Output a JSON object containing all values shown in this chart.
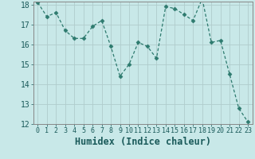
{
  "x": [
    0,
    1,
    2,
    3,
    4,
    5,
    6,
    7,
    8,
    9,
    10,
    11,
    12,
    13,
    14,
    15,
    16,
    17,
    18,
    19,
    20,
    21,
    22,
    23
  ],
  "y": [
    18.1,
    17.4,
    17.6,
    16.7,
    16.3,
    16.3,
    16.9,
    17.2,
    15.9,
    14.4,
    15.0,
    16.1,
    15.9,
    15.3,
    17.9,
    17.8,
    17.5,
    17.2,
    18.3,
    16.1,
    16.2,
    14.5,
    12.8,
    12.1
  ],
  "line_color": "#2d7a6e",
  "marker": "D",
  "marker_size": 2.5,
  "bg_color": "#c8e8e8",
  "grid_color_major": "#b0cccc",
  "grid_color_minor": "#d4e8e8",
  "xlabel": "Humidex (Indice chaleur)",
  "ylim": [
    12,
    18
  ],
  "xlim": [
    -0.5,
    23.5
  ],
  "yticks": [
    12,
    13,
    14,
    15,
    16,
    17,
    18
  ],
  "xticks": [
    0,
    1,
    2,
    3,
    4,
    5,
    6,
    7,
    8,
    9,
    10,
    11,
    12,
    13,
    14,
    15,
    16,
    17,
    18,
    19,
    20,
    21,
    22,
    23
  ],
  "tick_label_fontsize": 6.5,
  "xlabel_fontsize": 8.5,
  "spine_color": "#888888"
}
